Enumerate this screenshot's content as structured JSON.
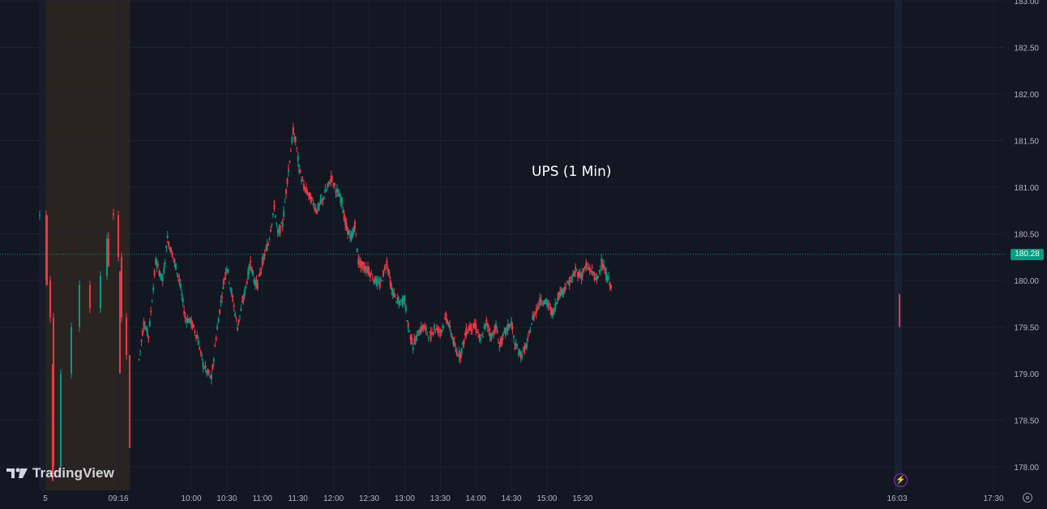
{
  "chart_data": {
    "type": "candlestick",
    "title": "UPS (1 Min)",
    "symbol": "UPS",
    "interval": "1 Min",
    "y_axis": {
      "ticks": [
        "178.00",
        "178.50",
        "179.00",
        "179.50",
        "180.00",
        "180.50",
        "181.00",
        "181.50",
        "182.00",
        "182.50",
        "183.00"
      ],
      "range": [
        177.85,
        183.02
      ],
      "side": "right"
    },
    "x_axis": {
      "tick_labels": [
        "5",
        "09:16",
        "10:00",
        "10:30",
        "11:00",
        "11:30",
        "12:00",
        "12:30",
        "13:00",
        "13:30",
        "14:00",
        "14:30",
        "15:00",
        "15:30",
        "16:03",
        "17:30"
      ]
    },
    "last_price": "180.28",
    "grid": true,
    "premarket_shading": true,
    "series": [
      {
        "kind": "path",
        "points": [
          [
            "09:16",
            179.15
          ],
          [
            "09:20",
            179.55
          ],
          [
            "09:24",
            179.4
          ],
          [
            "09:30",
            180.2
          ],
          [
            "09:36",
            180.0
          ],
          [
            "09:40",
            180.45
          ],
          [
            "09:46",
            180.2
          ],
          [
            "09:50",
            180.0
          ],
          [
            "09:55",
            179.6
          ],
          [
            "10:00",
            179.55
          ],
          [
            "10:05",
            179.4
          ],
          [
            "10:10",
            179.1
          ],
          [
            "10:14",
            179.0
          ],
          [
            "10:17",
            178.95
          ],
          [
            "10:22",
            179.5
          ],
          [
            "10:27",
            179.95
          ],
          [
            "10:30",
            180.15
          ],
          [
            "10:35",
            179.8
          ],
          [
            "10:39",
            179.5
          ],
          [
            "10:44",
            179.8
          ],
          [
            "10:50",
            180.2
          ],
          [
            "10:53",
            180.0
          ],
          [
            "10:56",
            179.95
          ],
          [
            "11:00",
            180.2
          ],
          [
            "11:05",
            180.4
          ],
          [
            "11:10",
            180.8
          ],
          [
            "11:13",
            180.5
          ],
          [
            "11:17",
            180.6
          ],
          [
            "11:22",
            181.2
          ],
          [
            "11:26",
            181.6
          ],
          [
            "11:28",
            181.5
          ],
          [
            "11:31",
            181.2
          ],
          [
            "11:35",
            181.0
          ],
          [
            "11:40",
            180.9
          ],
          [
            "11:46",
            180.75
          ],
          [
            "11:50",
            180.85
          ],
          [
            "11:55",
            181.0
          ],
          [
            "11:58",
            181.1
          ],
          [
            "12:03",
            180.95
          ],
          [
            "12:07",
            180.85
          ],
          [
            "12:10",
            180.6
          ],
          [
            "12:15",
            180.45
          ],
          [
            "12:18",
            180.6
          ],
          [
            "12:21",
            180.2
          ],
          [
            "12:25",
            180.15
          ],
          [
            "12:30",
            180.1
          ],
          [
            "12:35",
            180.0
          ],
          [
            "12:39",
            179.95
          ],
          [
            "12:45",
            180.2
          ],
          [
            "12:49",
            179.9
          ],
          [
            "12:55",
            179.75
          ],
          [
            "13:00",
            179.8
          ],
          [
            "13:03",
            179.5
          ],
          [
            "13:07",
            179.3
          ],
          [
            "13:12",
            179.45
          ],
          [
            "13:16",
            179.5
          ],
          [
            "13:22",
            179.4
          ],
          [
            "13:25",
            179.5
          ],
          [
            "13:30",
            179.45
          ],
          [
            "13:35",
            179.6
          ],
          [
            "13:38",
            179.5
          ],
          [
            "13:43",
            179.25
          ],
          [
            "13:47",
            179.2
          ],
          [
            "13:52",
            179.45
          ],
          [
            "13:55",
            179.5
          ],
          [
            "14:00",
            179.5
          ],
          [
            "14:04",
            179.35
          ],
          [
            "14:09",
            179.55
          ],
          [
            "14:13",
            179.4
          ],
          [
            "14:17",
            179.5
          ],
          [
            "14:20",
            179.3
          ],
          [
            "14:25",
            179.45
          ],
          [
            "14:30",
            179.55
          ],
          [
            "14:33",
            179.3
          ],
          [
            "14:38",
            179.2
          ],
          [
            "14:43",
            179.3
          ],
          [
            "14:48",
            179.6
          ],
          [
            "14:55",
            179.8
          ],
          [
            "15:00",
            179.75
          ],
          [
            "15:05",
            179.65
          ],
          [
            "15:10",
            179.85
          ],
          [
            "15:14",
            179.9
          ],
          [
            "15:20",
            180.0
          ],
          [
            "15:24",
            180.1
          ],
          [
            "15:29",
            180.05
          ],
          [
            "15:33",
            180.15
          ],
          [
            "15:38",
            180.1
          ],
          [
            "15:42",
            180.0
          ],
          [
            "15:46",
            180.2
          ],
          [
            "15:50",
            180.05
          ],
          [
            "15:54",
            179.95
          ]
        ]
      },
      {
        "kind": "premarket",
        "points": [
          [
            49,
            180.7
          ],
          [
            57,
            180.0
          ],
          [
            62,
            179.6
          ],
          [
            66,
            178.0
          ],
          [
            75,
            179.0
          ],
          [
            88,
            179.5
          ],
          [
            98,
            179.95
          ],
          [
            111,
            179.7
          ],
          [
            124,
            180.05
          ],
          [
            132,
            180.45
          ],
          [
            140,
            180.7
          ],
          [
            146,
            180.25
          ],
          [
            150,
            179.6
          ],
          [
            156,
            179.2
          ]
        ]
      },
      {
        "kind": "afterhours",
        "points": [
          [
            1108,
            180.15
          ],
          [
            1109,
            179.85
          ],
          [
            1110,
            179.5
          ]
        ]
      }
    ]
  }
}
